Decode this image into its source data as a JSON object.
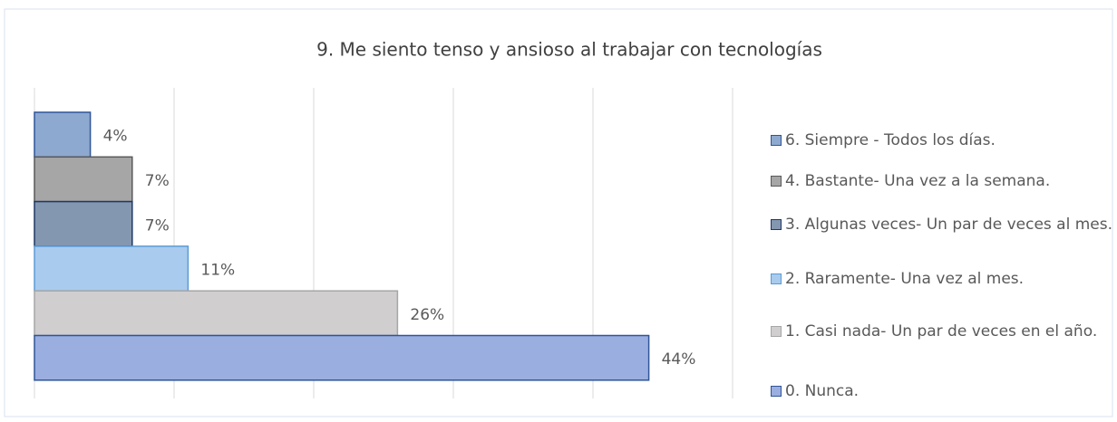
{
  "chart_data": {
    "type": "barh",
    "title": "9. Me siento tenso y ansioso al trabajar con tecnologías",
    "xlim": [
      0,
      50
    ],
    "xticks": [
      0,
      10,
      20,
      30,
      40,
      50
    ],
    "grid": true,
    "legend": "right",
    "series": [
      {
        "name": "6. Siempre - Todos los días.",
        "color": "#8ea9d0",
        "edge": "#2f5597",
        "values": [
          4
        ],
        "value_labels": [
          "4%"
        ]
      },
      {
        "name": "4. Bastante- Una vez a la semana.",
        "color": "#a6a6a6",
        "edge": "#595959",
        "values": [
          7
        ],
        "value_labels": [
          "7%"
        ]
      },
      {
        "name": "3. Algunas veces- Un par de veces al mes.",
        "color": "#8497b0",
        "edge": "#1f3864",
        "values": [
          7
        ],
        "value_labels": [
          "7%"
        ]
      },
      {
        "name": "2. Raramente- Una vez al mes.",
        "color": "#a9cbee",
        "edge": "#5b9bd5",
        "values": [
          11
        ],
        "value_labels": [
          "11%"
        ]
      },
      {
        "name": "1. Casi nada- Un par de veces en el año.",
        "color": "#d0cece",
        "edge": "#a6a6a6",
        "values": [
          26
        ],
        "value_labels": [
          "26%"
        ]
      },
      {
        "name": "0. Nunca.",
        "color": "#9aaee0",
        "edge": "#2f5597",
        "values": [
          44
        ],
        "value_labels": [
          "44%"
        ]
      }
    ]
  }
}
